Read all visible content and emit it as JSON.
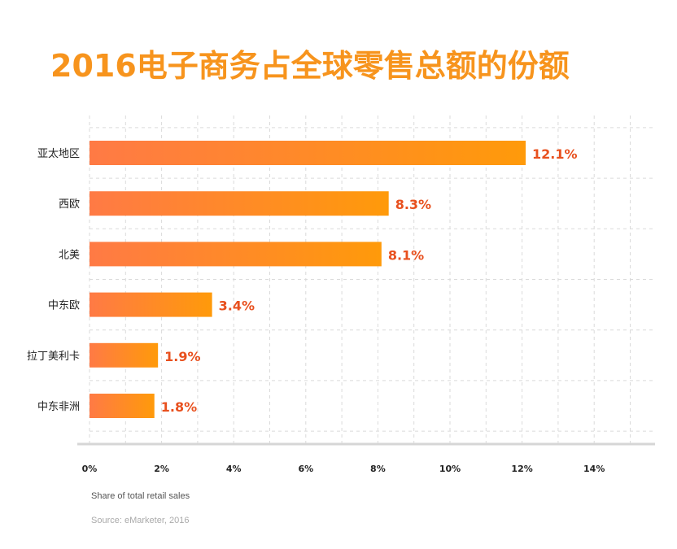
{
  "chart_data": {
    "type": "bar",
    "orientation": "horizontal",
    "title": "2016电子商务占全球零售总额的份额",
    "categories": [
      "亚太地区",
      "西欧",
      "北美",
      "中东欧",
      "拉丁美利卡",
      "中东非洲"
    ],
    "values": [
      12.1,
      8.3,
      8.1,
      3.4,
      1.9,
      1.8
    ],
    "value_labels": [
      "12.1%",
      "8.3%",
      "8.1%",
      "3.4%",
      "1.9%",
      "1.8%"
    ],
    "xlim": [
      0,
      15
    ],
    "ticks": [
      0,
      2,
      4,
      6,
      8,
      10,
      12,
      14
    ],
    "tick_labels": [
      "0%",
      "2%",
      "4%",
      "6%",
      "8%",
      "10%",
      "12%",
      "14%"
    ],
    "xlabel": "Share of total retail sales",
    "ylabel": "",
    "source": "Source: eMarketer, 2016",
    "grid": true,
    "colors": {
      "title": "#F7941D",
      "bar_start": "#FF7A45",
      "bar_end": "#FF9A0A",
      "value_label": "#E8501E",
      "category_label": "#222222",
      "grid": "#DADADA",
      "axis": "#D6D6D6"
    }
  }
}
